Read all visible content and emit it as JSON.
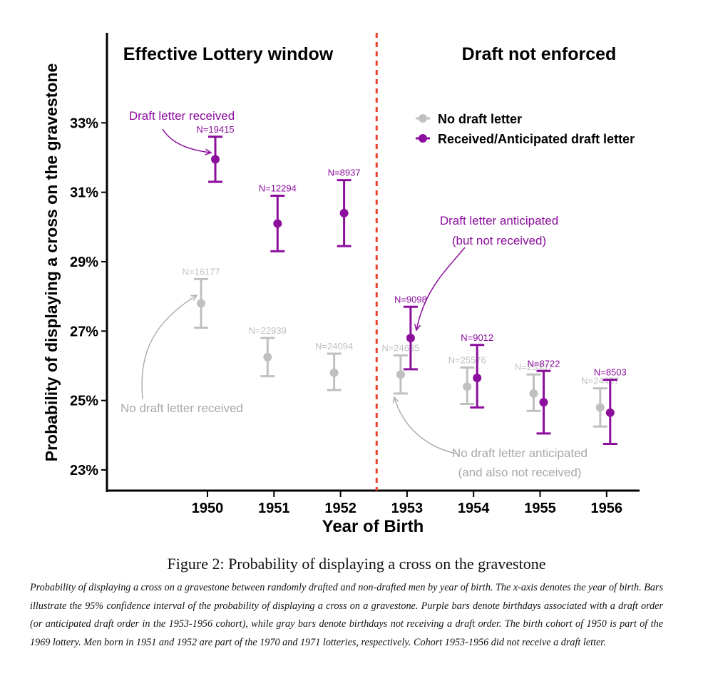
{
  "chart_data": {
    "type": "scatter",
    "ylabel": "Probability of displaying a cross on the gravestone",
    "xlabel": "Year of Birth",
    "x_categories": [
      "1950",
      "1951",
      "1952",
      "1953",
      "1954",
      "1955",
      "1956"
    ],
    "y_range": [
      22.0,
      35.5
    ],
    "y_ticks": [
      23,
      25,
      27,
      29,
      31,
      33
    ],
    "y_tick_labels": [
      "23%",
      "25%",
      "27%",
      "29%",
      "31%",
      "33%"
    ],
    "grid": false,
    "divider_x": 1952.5,
    "region_labels": {
      "left": "Effective Lottery window",
      "right": "Draft not enforced"
    },
    "legend": {
      "placement": "top-right",
      "entries": [
        {
          "label": "No draft letter",
          "color": "#c0c0c0"
        },
        {
          "label": "Received/Anticipated draft letter",
          "color": "#8b0e9c"
        }
      ]
    },
    "series": [
      {
        "name": "No draft letter",
        "color": "#c0c0c0",
        "points": [
          {
            "x": 1950,
            "y": 27.8,
            "lo": 27.1,
            "hi": 28.5,
            "n_label": "N=16177"
          },
          {
            "x": 1951,
            "y": 26.25,
            "lo": 25.7,
            "hi": 26.8,
            "n_label": "N=22939"
          },
          {
            "x": 1952,
            "y": 25.8,
            "lo": 25.3,
            "hi": 26.35,
            "n_label": "N=24094"
          },
          {
            "x": 1953,
            "y": 25.75,
            "lo": 25.2,
            "hi": 26.3,
            "n_label": "N=24635"
          },
          {
            "x": 1954,
            "y": 25.4,
            "lo": 24.9,
            "hi": 25.95,
            "n_label": "N=25576"
          },
          {
            "x": 1955,
            "y": 25.2,
            "lo": 24.7,
            "hi": 25.75,
            "n_label": "N=25337"
          },
          {
            "x": 1956,
            "y": 24.8,
            "lo": 24.25,
            "hi": 25.35,
            "n_label": "N=24457"
          }
        ]
      },
      {
        "name": "Received/Anticipated draft letter",
        "color": "#8b0e9c",
        "points": [
          {
            "x": 1950,
            "y": 31.95,
            "lo": 31.3,
            "hi": 32.6,
            "n_label": "N=19415"
          },
          {
            "x": 1951,
            "y": 30.1,
            "lo": 29.3,
            "hi": 30.9,
            "n_label": "N=12294"
          },
          {
            "x": 1952,
            "y": 30.4,
            "lo": 29.45,
            "hi": 31.35,
            "n_label": "N=8937"
          },
          {
            "x": 1953,
            "y": 26.8,
            "lo": 25.9,
            "hi": 27.7,
            "n_label": "N=9098"
          },
          {
            "x": 1954,
            "y": 25.65,
            "lo": 24.8,
            "hi": 26.6,
            "n_label": "N=9012"
          },
          {
            "x": 1955,
            "y": 24.95,
            "lo": 24.05,
            "hi": 25.85,
            "n_label": "N=8722"
          },
          {
            "x": 1956,
            "y": 24.65,
            "lo": 23.75,
            "hi": 25.6,
            "n_label": "N=8503"
          }
        ]
      }
    ],
    "annotations": [
      {
        "text": "Draft letter received",
        "color": "#8b0e9c"
      },
      {
        "text": "Draft letter anticipated",
        "color": "#8b0e9c"
      },
      {
        "text": "(but not received)",
        "color": "#8b0e9c"
      },
      {
        "text": "No draft letter received",
        "color": "#a8a8a8"
      },
      {
        "text": "No draft letter anticipated",
        "color": "#a8a8a8"
      },
      {
        "text": "(and also not received)",
        "color": "#a8a8a8"
      }
    ]
  },
  "caption": {
    "title": "Figure 2: Probability of displaying a cross on the gravestone",
    "body": "Probability of displaying a cross on a gravestone between randomly drafted and non-drafted men by year of birth. The x-axis denotes the year of birth.  Bars illustrate the 95% confidence interval of the probability of displaying a cross on a gravestone.  Purple bars denote birthdays associated with a draft order (or anticipated draft order in the 1953-1956 cohort), while gray bars denote birthdays not receiving a draft order. The birth cohort of 1950 is part of the 1969 lottery. Men born in 1951 and 1952 are part of the 1970 and 1971 lotteries, respectively. Cohort 1953-1956 did not receive a draft letter."
  }
}
